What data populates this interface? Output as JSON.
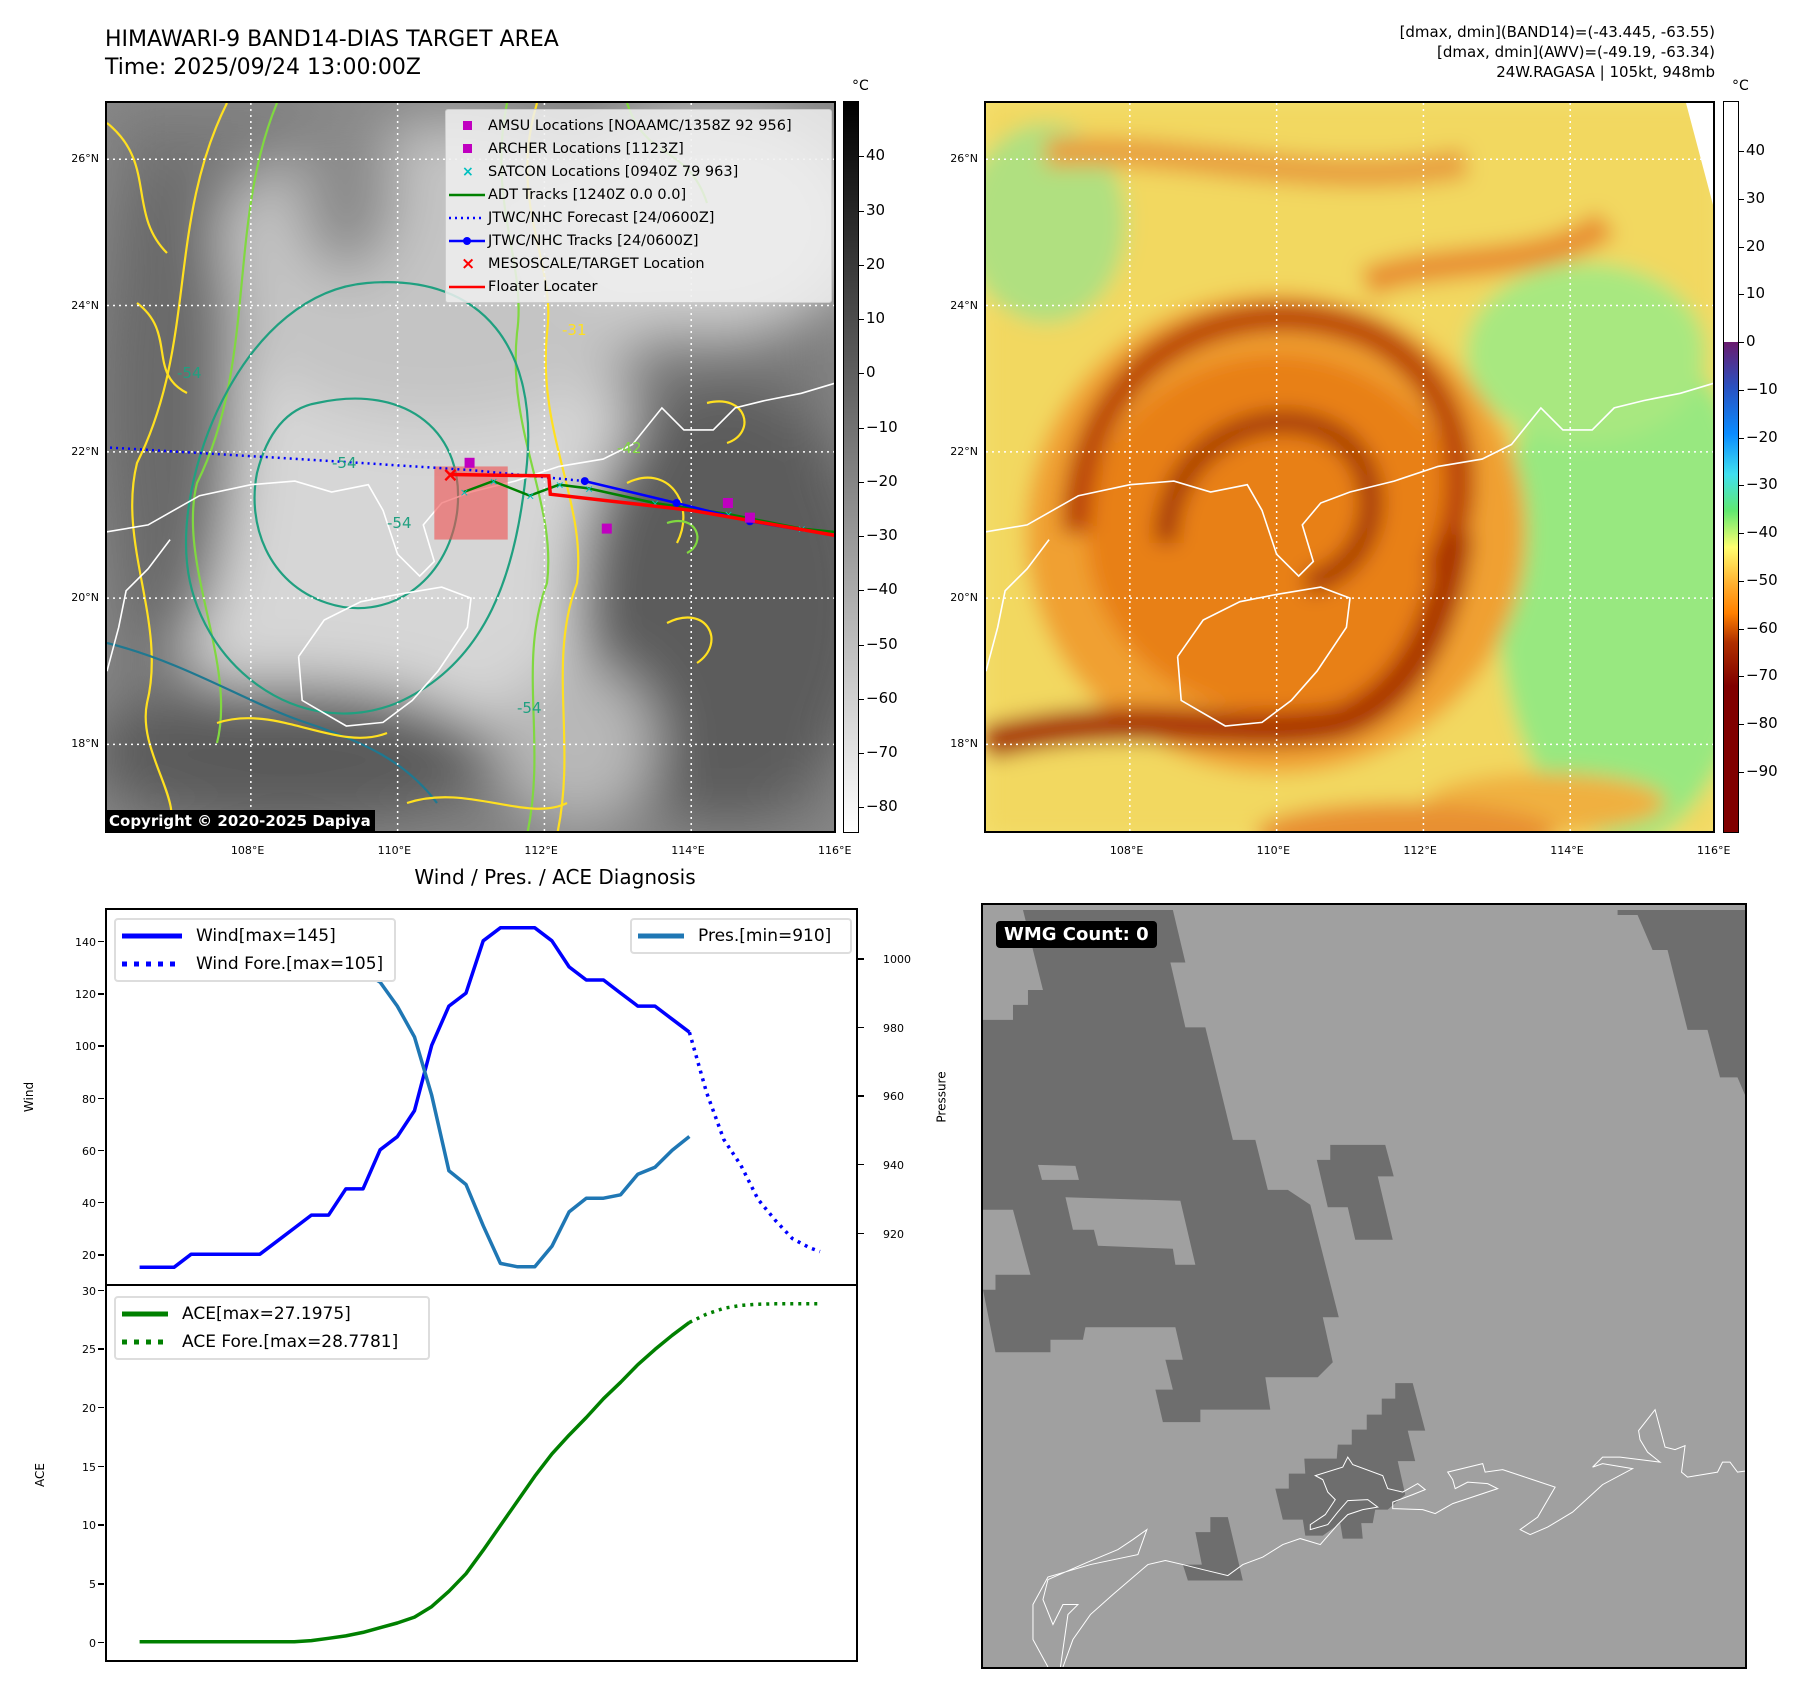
{
  "header": {
    "title": "HIMAWARI-9 BAND14-DIAS TARGET AREA",
    "time": "Time: 2025/09/24 13:00:00Z",
    "stats": [
      "[dmax, dmin](BAND14)=(-43.445, -63.55)",
      "[dmax, dmin](AWV)=(-49.19, -63.34)",
      "24W.RAGASA | 105kt, 948mb"
    ]
  },
  "maps": {
    "lat_labels": [
      "26°N",
      "24°N",
      "22°N",
      "20°N",
      "18°N"
    ],
    "lat_values": [
      26,
      24,
      22,
      20,
      18
    ],
    "lon_labels": [
      "108°E",
      "110°E",
      "112°E",
      "114°E",
      "116°E"
    ],
    "lon_values": [
      108,
      110,
      112,
      114,
      116
    ],
    "extent": {
      "lon_min": 106.04,
      "lon_max": 116.0,
      "lat_min": 16.76,
      "lat_max": 26.77
    },
    "copyright": "Copyright © 2020-2025 Dapiya",
    "contour_labels": [
      "-54",
      "-54",
      "-54",
      "-31",
      "-42",
      "-54"
    ],
    "legend": [
      {
        "label": "AMSU Locations [NOAAMC/1358Z 92 956]",
        "icon": "magenta-square-marker"
      },
      {
        "label": "ARCHER Locations [1123Z]",
        "icon": "magenta-square-marker"
      },
      {
        "label": "SATCON Locations [0940Z 79 963]",
        "icon": "cyan-x-marker"
      },
      {
        "label": "ADT Tracks [1240Z 0.0 0.0]",
        "icon": "green-line"
      },
      {
        "label": "JTWC/NHC Forecast [24/0600Z]",
        "icon": "blue-dotted-line"
      },
      {
        "label": "JTWC/NHC Tracks [24/0600Z]",
        "icon": "blue-line-dot"
      },
      {
        "label": "MESOSCALE/TARGET Location",
        "icon": "red-x-marker"
      },
      {
        "label": "Floater Locater",
        "icon": "red-line"
      }
    ],
    "tracks": {
      "jtwc_forecast": [
        [
          112.55,
          21.6
        ],
        [
          111,
          21.75
        ],
        [
          109,
          21.88
        ],
        [
          106.04,
          22.06
        ]
      ],
      "jtwc_track": [
        [
          112.55,
          21.6
        ],
        [
          113.8,
          21.3
        ],
        [
          114.8,
          21.05
        ],
        [
          116.0,
          20.85
        ]
      ],
      "floater": [
        [
          110.7,
          21.69
        ],
        [
          112.06,
          21.67
        ],
        [
          112.08,
          21.42
        ],
        [
          114,
          21.2
        ],
        [
          116.0,
          20.85
        ]
      ],
      "adt": [
        [
          110.9,
          21.45
        ],
        [
          111.3,
          21.6
        ],
        [
          111.8,
          21.4
        ],
        [
          112.2,
          21.55
        ],
        [
          112.6,
          21.5
        ],
        [
          113.5,
          21.3
        ],
        [
          114.5,
          21.15
        ],
        [
          115.5,
          20.95
        ],
        [
          116,
          20.9
        ]
      ],
      "amsu": [
        [
          110.98,
          21.85
        ],
        [
          112.85,
          20.95
        ],
        [
          114.5,
          21.3
        ],
        [
          114.8,
          21.1
        ]
      ],
      "target": [
        110.7,
        21.69
      ],
      "target_box": [
        110.5,
        111.5,
        20.8,
        21.8
      ]
    },
    "colorbar_left": {
      "unit": "°C",
      "ticks": [
        40,
        30,
        20,
        10,
        0,
        -10,
        -20,
        -30,
        -40,
        -50,
        -60,
        -70,
        -80
      ],
      "range": [
        -84.7,
        50.2
      ]
    },
    "colorbar_right": {
      "unit": "°C",
      "ticks": [
        40,
        30,
        20,
        10,
        0,
        -10,
        -20,
        -30,
        -40,
        -50,
        -60,
        -70,
        -80,
        -90
      ],
      "range": [
        -102.8,
        50.5
      ]
    },
    "colors": {
      "amsu": "#c000c0",
      "satcon": "#00c0c0",
      "adt": "#008000",
      "jtwc": "#0000ff",
      "target": "#ff0000"
    }
  },
  "diagnosis": {
    "title": "Wind / Pres. / ACE Diagnosis"
  },
  "chart_data": [
    {
      "type": "line",
      "title": "Wind / Pres. / ACE Diagnosis",
      "ylabel": "Wind",
      "y2label": "Pressure",
      "xlim": [
        -1.9,
        41.7
      ],
      "ylim": [
        8.6,
        151.8
      ],
      "y2lim": [
        905,
        1014
      ],
      "yticks": [
        20,
        40,
        60,
        80,
        100,
        120,
        140
      ],
      "y2ticks": [
        920,
        940,
        960,
        980,
        1000
      ],
      "series": [
        {
          "name": "Wind[max=145]",
          "axis": "left",
          "style": "solid",
          "color": "#0000ff",
          "x": [
            0,
            1,
            2,
            3,
            4,
            5,
            6,
            7,
            8,
            9,
            10,
            11,
            12,
            13,
            14,
            15,
            16,
            17,
            18,
            19,
            20,
            21,
            22,
            23,
            24,
            25,
            26,
            27,
            28,
            29,
            30,
            31,
            32
          ],
          "values": [
            15,
            15,
            15,
            20,
            20,
            20,
            20,
            20,
            25,
            30,
            35,
            35,
            45,
            45,
            60,
            65,
            75,
            100,
            115,
            120,
            140,
            145,
            145,
            145,
            140,
            130,
            125,
            125,
            120,
            115,
            115,
            110,
            105
          ]
        },
        {
          "name": "Wind Fore.[max=105]",
          "axis": "left",
          "style": "dotted",
          "color": "#0000ff",
          "x": [
            32,
            33,
            34,
            35,
            36,
            37,
            38,
            39,
            39.6
          ],
          "values": [
            105,
            82,
            64,
            54,
            41,
            33,
            26,
            22.5,
            21
          ]
        },
        {
          "name": "Pres.[min=910]",
          "axis": "right",
          "style": "solid",
          "color": "#1f77b4",
          "x": [
            0,
            1,
            2,
            3,
            4,
            5,
            6,
            7,
            8,
            9,
            10,
            11,
            12,
            13,
            14,
            15,
            16,
            17,
            18,
            19,
            20,
            21,
            22,
            23,
            24,
            25,
            26,
            27,
            28,
            29,
            30,
            31,
            32
          ],
          "values": [
            1009,
            1007,
            1007,
            1007,
            1007,
            1008,
            1008,
            1007,
            1006,
            1005,
            1004,
            1001,
            998,
            996,
            993,
            986,
            977,
            960,
            938,
            934,
            922,
            911,
            910,
            910,
            916,
            926,
            930,
            930,
            931,
            937,
            939,
            944,
            948
          ]
        }
      ]
    },
    {
      "type": "line",
      "ylabel": "ACE",
      "xlim": [
        -1.9,
        41.7
      ],
      "ylim": [
        -1.55,
        30.3
      ],
      "yticks": [
        0,
        5,
        10,
        15,
        20,
        25,
        30
      ],
      "series": [
        {
          "name": "ACE[max=27.1975]",
          "style": "solid",
          "color": "#008000",
          "x": [
            0,
            1,
            2,
            3,
            4,
            5,
            6,
            7,
            8,
            9,
            10,
            11,
            12,
            13,
            14,
            15,
            16,
            17,
            18,
            19,
            20,
            21,
            22,
            23,
            24,
            25,
            26,
            27,
            28,
            29,
            30,
            31,
            32
          ],
          "values": [
            0,
            0,
            0,
            0,
            0,
            0,
            0,
            0,
            0,
            0,
            0.1,
            0.3,
            0.5,
            0.8,
            1.2,
            1.6,
            2.1,
            3.0,
            4.3,
            5.8,
            7.8,
            9.9,
            12.0,
            14.1,
            16.0,
            17.6,
            19.1,
            20.7,
            22.1,
            23.6,
            24.9,
            26.1,
            27.2
          ]
        },
        {
          "name": "ACE Fore.[max=28.7781]",
          "style": "dotted",
          "color": "#008000",
          "x": [
            32,
            33,
            34,
            35,
            36,
            37,
            38,
            39,
            39.6
          ],
          "values": [
            27.2,
            27.9,
            28.4,
            28.65,
            28.75,
            28.78,
            28.78,
            28.78,
            28.78
          ]
        }
      ]
    }
  ],
  "wmg": {
    "label": "WMG Count: 0"
  }
}
